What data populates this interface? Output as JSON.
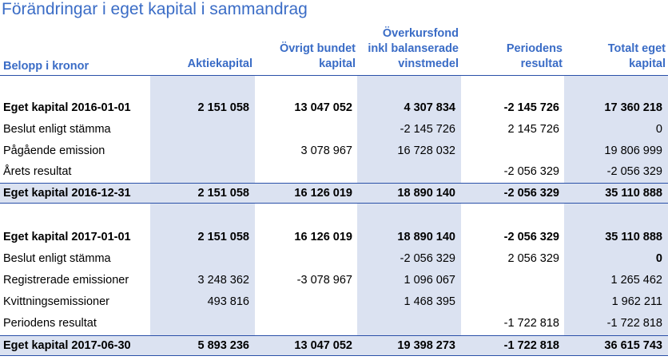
{
  "title": "Förändringar i eget kapital i sammandrag",
  "headers": {
    "label": "Belopp i kronor",
    "c1": [
      "Aktiekapital"
    ],
    "c2": [
      "Övrigt bundet",
      "kapital"
    ],
    "c3": [
      "Överkursfond",
      "inkl balanserade",
      "vinstmedel"
    ],
    "c4": [
      "Periodens",
      "resultat"
    ],
    "c5": [
      "Totalt eget",
      "kapital"
    ]
  },
  "rows": [
    {
      "label": "Eget kapital 2016-01-01",
      "c1": "2 151 058",
      "c2": "13 047 052",
      "c3": "4 307 834",
      "c4": "-2 145 726",
      "c5": "17 360 218"
    },
    {
      "label": "Beslut enligt stämma",
      "c1": "",
      "c2": "",
      "c3": "-2 145 726",
      "c4": "2 145 726",
      "c5": "0"
    },
    {
      "label": "Pågående emission",
      "c1": "",
      "c2": "3 078 967",
      "c3": "16 728 032",
      "c4": "",
      "c5": "19 806 999"
    },
    {
      "label": "Årets resultat",
      "c1": "",
      "c2": "",
      "c3": "",
      "c4": "-2 056 329",
      "c5": "-2 056 329"
    },
    {
      "label": "Eget kapital 2016-12-31",
      "c1": "2 151 058",
      "c2": "16 126 019",
      "c3": "18 890 140",
      "c4": "-2 056 329",
      "c5": "35 110 888"
    },
    {
      "label": "Eget kapital 2017-01-01",
      "c1": "2 151 058",
      "c2": "16 126 019",
      "c3": "18 890 140",
      "c4": "-2 056 329",
      "c5": "35 110 888"
    },
    {
      "label": "Beslut enligt stämma",
      "c1": "",
      "c2": "",
      "c3": "-2 056 329",
      "c4": "2 056 329",
      "c5": "0"
    },
    {
      "label": "Registrerade emissioner",
      "c1": "3 248 362",
      "c2": "-3 078 967",
      "c3": "1 096 067",
      "c4": "",
      "c5": "1 265 462"
    },
    {
      "label": "Kvittningsemissioner",
      "c1": "493 816",
      "c2": "",
      "c3": "1 468 395",
      "c4": "",
      "c5": "1 962 211"
    },
    {
      "label": "Periodens resultat",
      "c1": "",
      "c2": "",
      "c3": "",
      "c4": "-1 722 818",
      "c5": "-1 722 818"
    },
    {
      "label": "Eget kapital 2017-06-30",
      "c1": "5 893 236",
      "c2": "13 047 052",
      "c3": "19 398 273",
      "c4": "-1 722 818",
      "c5": "36 615 743"
    }
  ],
  "colors": {
    "accent": "#3a6cc6",
    "shade": "#dbe2f1",
    "rule": "#2a50a8"
  }
}
